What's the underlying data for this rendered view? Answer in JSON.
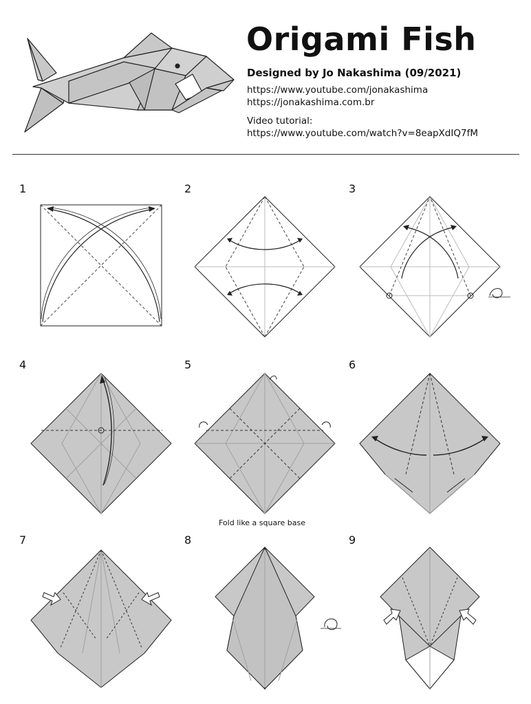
{
  "header": {
    "title": "Origami Fish",
    "designer": "Designed by Jo Nakashima (09/2021)",
    "links": [
      "https://www.youtube.com/jonakashima",
      "https://jonakashima.com.br"
    ],
    "tutorial_label": "Video tutorial:",
    "tutorial_url": "https://www.youtube.com/watch?v=8eapXdIQ7fM"
  },
  "steps": [
    "1",
    "2",
    "3",
    "4",
    "5",
    "6",
    "7",
    "8",
    "9"
  ],
  "captions": {
    "step5": "Fold like a square base"
  },
  "colors": {
    "paper": "#c8c8c8",
    "line": "#222222",
    "crease": "#9a9a9a"
  }
}
